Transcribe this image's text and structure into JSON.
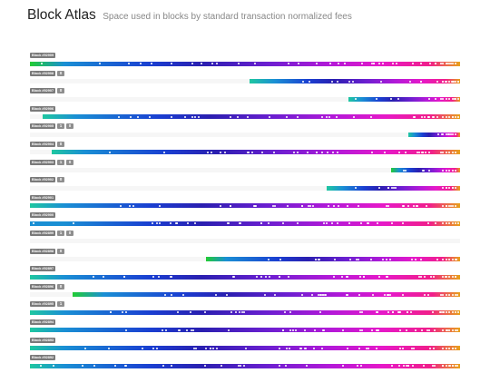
{
  "header": {
    "title": "Block Atlas",
    "subtitle": "Space used in blocks by standard transaction normalized fees"
  },
  "colors": {
    "gradient": [
      "#1a3fd1",
      "#2a1fb0",
      "#6a1fd0",
      "#b419d8",
      "#e619c8",
      "#f01f8a",
      "#e8a21a"
    ],
    "low_fee_start": [
      "#22cc33",
      "#1fc7a0",
      "#18b3c4",
      "#1a8fd4"
    ],
    "label_bg": "#7a7a7a"
  },
  "rows": [
    {
      "label": "Block #92909",
      "badges": [],
      "fill_pct": 100,
      "start": "green"
    },
    {
      "label": "Block #92908",
      "badges": [
        "0"
      ],
      "fill_pct": 49,
      "start": "teal"
    },
    {
      "label": "Block #92907",
      "badges": [
        "0"
      ],
      "fill_pct": 26,
      "start": "teal"
    },
    {
      "label": "Block #92906",
      "badges": [],
      "fill_pct": 97,
      "start": "teal"
    },
    {
      "label": "Block #92905",
      "badges": [
        "1",
        "0"
      ],
      "fill_pct": 12,
      "start": "teal"
    },
    {
      "label": "Block #92904",
      "badges": [
        "0"
      ],
      "fill_pct": 95,
      "start": "teal"
    },
    {
      "label": "Block #92903",
      "badges": [
        "1",
        "0"
      ],
      "fill_pct": 16,
      "start": "green"
    },
    {
      "label": "Block #92902",
      "badges": [
        "0"
      ],
      "fill_pct": 31,
      "start": "teal"
    },
    {
      "label": "Block #92901",
      "badges": [],
      "fill_pct": 100,
      "start": "teal"
    },
    {
      "label": "Block #92900",
      "badges": [],
      "fill_pct": 100,
      "start": "blue"
    },
    {
      "label": "Block #92899",
      "badges": [
        "1",
        "0"
      ],
      "fill_pct": 0,
      "start": "teal"
    },
    {
      "label": "Block #92898",
      "badges": [
        "0"
      ],
      "fill_pct": 59,
      "start": "green"
    },
    {
      "label": "Block #92897",
      "badges": [],
      "fill_pct": 100,
      "start": "teal"
    },
    {
      "label": "Block #92896",
      "badges": [
        "0"
      ],
      "fill_pct": 90,
      "start": "green"
    },
    {
      "label": "Block #92895",
      "badges": [
        "1"
      ],
      "fill_pct": 100,
      "start": "teal"
    },
    {
      "label": "Block #92894",
      "badges": [],
      "fill_pct": 100,
      "start": "teal"
    },
    {
      "label": "Block #92893",
      "badges": [],
      "fill_pct": 100,
      "start": "teal"
    },
    {
      "label": "Block #92892",
      "badges": [],
      "fill_pct": 100,
      "start": "teal"
    }
  ]
}
